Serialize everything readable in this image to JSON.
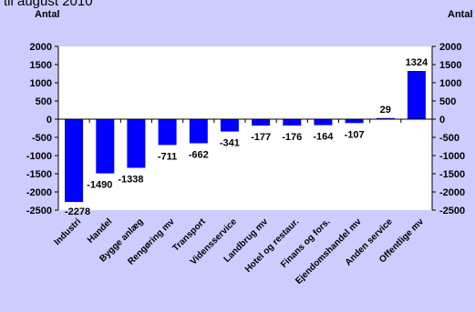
{
  "caption": "til august 2010",
  "chart_data": {
    "type": "bar",
    "ylabel_left": "Antal",
    "ylabel_right": "Antal",
    "ylim": [
      -2500,
      2000
    ],
    "yticks": [
      2000,
      1500,
      1000,
      500,
      0,
      -500,
      -1000,
      -1500,
      -2000,
      -2500
    ],
    "ytick_labels": [
      "2000",
      "1500",
      "1000",
      "500",
      "0",
      "-500",
      "-1000",
      "-1500",
      "-2000",
      "-2500"
    ],
    "categories": [
      "Industri",
      "Handel",
      "Bygge anlæg",
      "Rengøring mv",
      "Transport",
      "Vidensservice",
      "Landbrug mv",
      "Hotel og restaur.",
      "Finans og fors.",
      "Ejendomshandel mv",
      "Anden service",
      "Offentlige mv"
    ],
    "values": [
      -2278,
      -1490,
      -1338,
      -711,
      -662,
      -341,
      -177,
      -176,
      -164,
      -107,
      29,
      1324
    ],
    "value_labels": [
      "-2278",
      "-1490",
      "-1338",
      "-711",
      "-662",
      "-341",
      "-177",
      "-176",
      "-164",
      "-107",
      "29",
      "1324"
    ],
    "bar_color": "#0000ff",
    "plot_background": "#ffffff",
    "grid": false,
    "legend": "none"
  }
}
